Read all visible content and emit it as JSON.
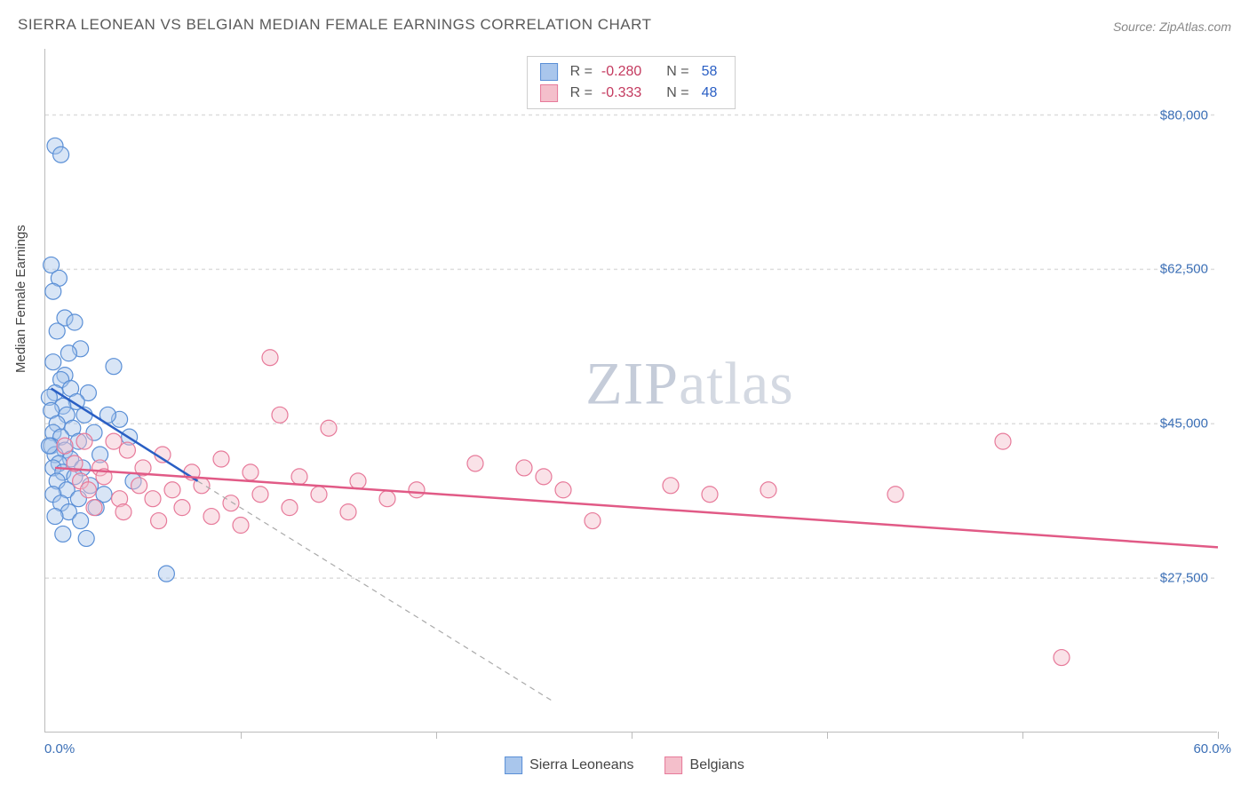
{
  "title": "SIERRA LEONEAN VS BELGIAN MEDIAN FEMALE EARNINGS CORRELATION CHART",
  "source": "Source: ZipAtlas.com",
  "y_axis_label": "Median Female Earnings",
  "watermark": {
    "part1": "ZIP",
    "part2": "atlas"
  },
  "chart": {
    "type": "scatter",
    "xlim": [
      0,
      60
    ],
    "ylim": [
      10000,
      87500
    ],
    "x_ticks": [
      0,
      10,
      20,
      30,
      40,
      50,
      60
    ],
    "x_tick_labels_shown": {
      "0": "0.0%",
      "60": "60.0%"
    },
    "y_gridlines": [
      27500,
      45000,
      62500,
      80000
    ],
    "y_tick_labels": [
      "$27,500",
      "$45,000",
      "$62,500",
      "$80,000"
    ],
    "background_color": "#ffffff",
    "grid_color": "#dddddd",
    "axis_color": "#bbbbbb",
    "label_color_axis": "#3b6fb6",
    "marker_radius": 9,
    "marker_opacity": 0.45,
    "marker_stroke_width": 1.2,
    "trend_line_width": 2.5,
    "trend_dashed_color": "#aaaaaa",
    "series": [
      {
        "name": "Sierra Leoneans",
        "fill": "#a9c6ec",
        "stroke": "#5a8fd6",
        "line_color": "#2a5fc4",
        "R": "-0.280",
        "N": "58",
        "trend": {
          "x1": 0.3,
          "y1": 49000,
          "x2": 7.8,
          "y2": 38500
        },
        "trend_dashed_to": {
          "x": 26,
          "y": 13500
        },
        "points": [
          [
            0.5,
            76500
          ],
          [
            0.8,
            75500
          ],
          [
            0.3,
            63000
          ],
          [
            0.7,
            61500
          ],
          [
            0.4,
            60000
          ],
          [
            1.0,
            57000
          ],
          [
            1.5,
            56500
          ],
          [
            0.6,
            55500
          ],
          [
            1.8,
            53500
          ],
          [
            1.2,
            53000
          ],
          [
            0.4,
            52000
          ],
          [
            3.5,
            51500
          ],
          [
            1.0,
            50500
          ],
          [
            0.8,
            50000
          ],
          [
            1.3,
            49000
          ],
          [
            0.5,
            48500
          ],
          [
            2.2,
            48500
          ],
          [
            0.2,
            48000
          ],
          [
            1.6,
            47500
          ],
          [
            0.9,
            47000
          ],
          [
            0.3,
            46500
          ],
          [
            1.1,
            46000
          ],
          [
            2.0,
            46000
          ],
          [
            3.8,
            45500
          ],
          [
            0.6,
            45000
          ],
          [
            1.4,
            44500
          ],
          [
            0.4,
            44000
          ],
          [
            2.5,
            44000
          ],
          [
            0.8,
            43500
          ],
          [
            1.7,
            43000
          ],
          [
            0.3,
            42500
          ],
          [
            1.0,
            42000
          ],
          [
            0.5,
            41500
          ],
          [
            2.8,
            41500
          ],
          [
            1.3,
            41000
          ],
          [
            0.7,
            40500
          ],
          [
            3.2,
            46000
          ],
          [
            0.4,
            40000
          ],
          [
            1.9,
            40000
          ],
          [
            0.2,
            42500
          ],
          [
            0.9,
            39500
          ],
          [
            4.3,
            43500
          ],
          [
            1.5,
            39000
          ],
          [
            0.6,
            38500
          ],
          [
            2.3,
            38000
          ],
          [
            1.1,
            37500
          ],
          [
            0.4,
            37000
          ],
          [
            3.0,
            37000
          ],
          [
            1.7,
            36500
          ],
          [
            0.8,
            36000
          ],
          [
            2.6,
            35500
          ],
          [
            1.2,
            35000
          ],
          [
            0.5,
            34500
          ],
          [
            4.5,
            38500
          ],
          [
            1.8,
            34000
          ],
          [
            0.9,
            32500
          ],
          [
            2.1,
            32000
          ],
          [
            6.2,
            28000
          ]
        ]
      },
      {
        "name": "Belgians",
        "fill": "#f4bfcb",
        "stroke": "#e77a9a",
        "line_color": "#e15a86",
        "R": "-0.333",
        "N": "48",
        "trend": {
          "x1": 0.5,
          "y1": 40000,
          "x2": 60,
          "y2": 31000
        },
        "points": [
          [
            11.5,
            52500
          ],
          [
            12.0,
            46000
          ],
          [
            14.5,
            44500
          ],
          [
            2.0,
            43000
          ],
          [
            3.5,
            43000
          ],
          [
            1.0,
            42500
          ],
          [
            4.2,
            42000
          ],
          [
            6.0,
            41500
          ],
          [
            9.0,
            41000
          ],
          [
            1.5,
            40500
          ],
          [
            2.8,
            40000
          ],
          [
            5.0,
            40000
          ],
          [
            7.5,
            39500
          ],
          [
            10.5,
            39500
          ],
          [
            3.0,
            39000
          ],
          [
            1.8,
            38500
          ],
          [
            13.0,
            39000
          ],
          [
            16.0,
            38500
          ],
          [
            4.8,
            38000
          ],
          [
            8.0,
            38000
          ],
          [
            2.2,
            37500
          ],
          [
            6.5,
            37500
          ],
          [
            11.0,
            37000
          ],
          [
            14.0,
            37000
          ],
          [
            19.0,
            37500
          ],
          [
            3.8,
            36500
          ],
          [
            5.5,
            36500
          ],
          [
            9.5,
            36000
          ],
          [
            17.5,
            36500
          ],
          [
            22.0,
            40500
          ],
          [
            2.5,
            35500
          ],
          [
            7.0,
            35500
          ],
          [
            12.5,
            35500
          ],
          [
            24.5,
            40000
          ],
          [
            25.5,
            39000
          ],
          [
            4.0,
            35000
          ],
          [
            8.5,
            34500
          ],
          [
            15.5,
            35000
          ],
          [
            26.5,
            37500
          ],
          [
            32.0,
            38000
          ],
          [
            5.8,
            34000
          ],
          [
            10.0,
            33500
          ],
          [
            28.0,
            34000
          ],
          [
            34.0,
            37000
          ],
          [
            37.0,
            37500
          ],
          [
            43.5,
            37000
          ],
          [
            49.0,
            43000
          ],
          [
            52.0,
            18500
          ]
        ]
      }
    ]
  },
  "legend_bottom": [
    {
      "label": "Sierra Leoneans",
      "fill": "#a9c6ec",
      "stroke": "#5a8fd6"
    },
    {
      "label": "Belgians",
      "fill": "#f4bfcb",
      "stroke": "#e77a9a"
    }
  ]
}
